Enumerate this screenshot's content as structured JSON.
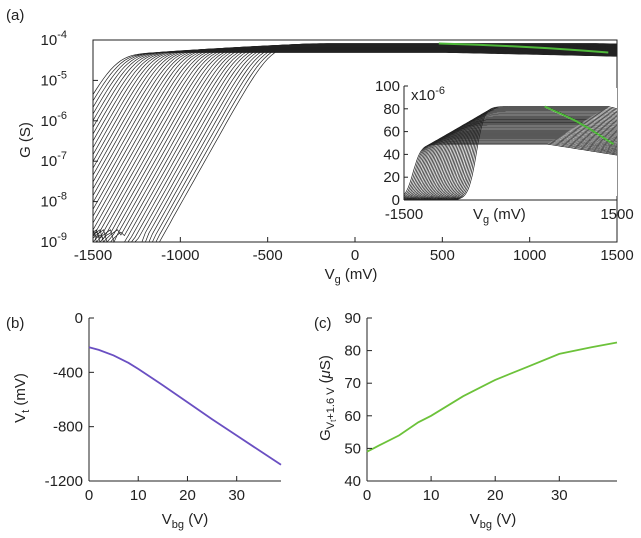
{
  "chart_data": [
    {
      "panel_label": "(a)",
      "type": "line",
      "y_scale": "log",
      "xlabel": "V",
      "xlabel_sub": "g",
      "xlabel_unit": " (mV)",
      "ylabel": "G (S)",
      "xlim": [
        -1500,
        1500
      ],
      "ylim": [
        1e-09,
        0.0001
      ],
      "x_ticks": [
        -1500,
        -1000,
        -500,
        0,
        500,
        1000,
        1500
      ],
      "x_tick_labels": [
        "-1500",
        "-1000",
        "-500",
        "0",
        "500",
        "1000",
        "1500"
      ],
      "y_ticks": [
        1e-09,
        1e-08,
        1e-07,
        1e-06,
        1e-05,
        0.0001
      ],
      "y_tick_base": "10",
      "y_tick_exponents": [
        "-9",
        "-8",
        "-7",
        "-6",
        "-5",
        "-4"
      ],
      "family": {
        "curve_count": 40,
        "threshold_first_mV": -220,
        "threshold_last_mV": -1080,
        "saturation_first_S": 8.2e-05,
        "saturation_last_S": 4.9e-05,
        "color": "#222222"
      },
      "highlight": {
        "name": "V_t + 1.6 V",
        "color": "#4fb83a",
        "x": [
          480,
          700,
          900,
          1100,
          1300,
          1450
        ],
        "y": [
          8.2e-05,
          7.6e-05,
          7e-05,
          6.3e-05,
          5.5e-05,
          4.9e-05
        ]
      },
      "inset": {
        "type": "line",
        "y_scale": "linear",
        "xlabel": "V",
        "xlabel_sub": "g",
        "xlabel_unit": " (mV)",
        "xlim": [
          -1500,
          1500
        ],
        "ylim": [
          0,
          100
        ],
        "x_ticks": [
          -1500,
          1500
        ],
        "x_tick_labels": [
          "-1500",
          "1500"
        ],
        "y_ticks": [
          0,
          20,
          40,
          60,
          80,
          100
        ],
        "y_tick_labels": [
          "0",
          "20",
          "40",
          "60",
          "80",
          "100"
        ],
        "multiplier_text": "x10",
        "multiplier_exp": "-6",
        "highlight": {
          "x": [
            480,
            700,
            900,
            1100,
            1300,
            1450
          ],
          "y": [
            82,
            76,
            70,
            63,
            55,
            49
          ]
        }
      }
    },
    {
      "panel_label": "(b)",
      "type": "line",
      "xlabel": "V",
      "xlabel_sub": "bg",
      "xlabel_unit": " (V)",
      "ylabel": "V",
      "ylabel_sub": "t",
      "ylabel_unit": " (mV)",
      "xlim": [
        0,
        39
      ],
      "ylim": [
        -1200,
        0
      ],
      "x_ticks": [
        0,
        10,
        20,
        30
      ],
      "x_tick_labels": [
        "0",
        "10",
        "20",
        "30"
      ],
      "y_ticks": [
        0,
        -400,
        -800,
        -1200
      ],
      "y_tick_labels": [
        "0",
        "-400",
        "-800",
        "-1200"
      ],
      "series": [
        {
          "color": "#6a4fc2",
          "x": [
            0,
            2,
            5,
            8,
            10,
            15,
            20,
            25,
            30,
            35,
            39
          ],
          "y": [
            -215,
            -235,
            -275,
            -330,
            -375,
            -495,
            -620,
            -745,
            -865,
            -985,
            -1080
          ]
        }
      ]
    },
    {
      "panel_label": "(c)",
      "type": "line",
      "xlabel": "V",
      "xlabel_sub": "bg",
      "xlabel_unit": " (V)",
      "ylabel": "G",
      "ylabel_sub": "V",
      "ylabel_subsub": "t",
      "ylabel_sub2": "+1.6 V",
      "ylabel_unit_pre": " (",
      "ylabel_mu": "μ",
      "ylabel_unit_post": "S)",
      "xlim": [
        0,
        39
      ],
      "ylim": [
        40,
        90
      ],
      "x_ticks": [
        0,
        10,
        20,
        30
      ],
      "x_tick_labels": [
        "0",
        "10",
        "20",
        "30"
      ],
      "y_ticks": [
        40,
        50,
        60,
        70,
        80,
        90
      ],
      "y_tick_labels": [
        "40",
        "50",
        "60",
        "70",
        "80",
        "90"
      ],
      "series": [
        {
          "color": "#6cc23a",
          "x": [
            0,
            1,
            2,
            5,
            8,
            10,
            15,
            20,
            25,
            30,
            35,
            39
          ],
          "y": [
            49,
            50,
            51,
            54,
            58,
            60,
            66,
            71,
            75,
            79,
            81,
            82.5
          ]
        }
      ]
    }
  ]
}
